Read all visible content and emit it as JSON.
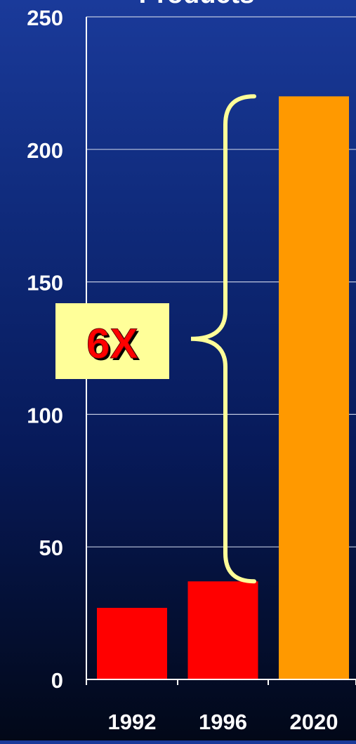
{
  "chart_data": {
    "type": "bar",
    "title": "Products",
    "categories": [
      "1992",
      "1996",
      "2020"
    ],
    "values": [
      27,
      37,
      220
    ],
    "ylim": [
      0,
      250
    ],
    "yticks": [
      0,
      50,
      100,
      150,
      200,
      250
    ],
    "grid": true,
    "annotation": {
      "label": "6X",
      "from_value": 37,
      "to_value": 220
    }
  },
  "colors": {
    "bar_historic": "#ff0000",
    "bar_projected": "#ff9900",
    "axis": "#ffffff",
    "gridline": "#c0c8e0",
    "brace": "#ffff99",
    "annotation_box": "#ffff99",
    "annotation_text": "#ff0000",
    "annotation_shadow": "#000000"
  }
}
